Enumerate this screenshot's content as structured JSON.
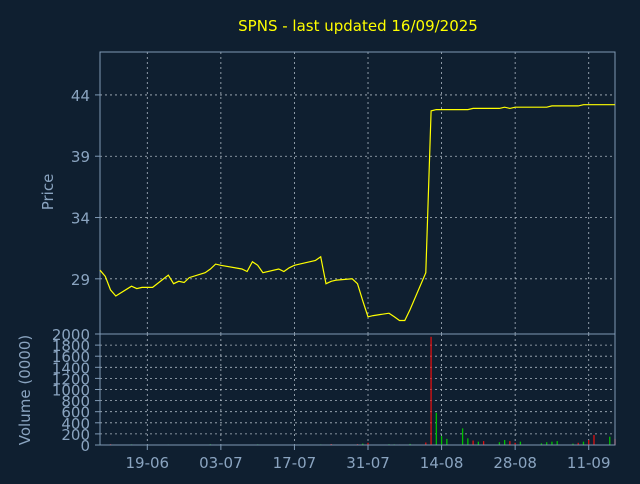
{
  "colors": {
    "background": "#0f1f30",
    "axis": "#7f9ab5",
    "grid": "#c8d2dc",
    "title": "#ffff00",
    "price_line": "#ffff00",
    "volume_up": "#00c000",
    "volume_down": "#e01010",
    "tick_text": "#8aa4c0"
  },
  "chart_data": [
    {
      "type": "line",
      "title": "SPNS - last updated 16/09/2025",
      "ylabel": "Price",
      "xlabel": "",
      "ylim": [
        24.5,
        47.5
      ],
      "yticks": [
        29,
        34,
        39,
        44
      ],
      "grid": true,
      "x_range": [
        "2025-06-10",
        "2025-09-16"
      ],
      "xticks": [
        {
          "date": "2025-06-19",
          "label": "19-06"
        },
        {
          "date": "2025-07-03",
          "label": "03-07"
        },
        {
          "date": "2025-07-17",
          "label": "17-07"
        },
        {
          "date": "2025-07-31",
          "label": "31-07"
        },
        {
          "date": "2025-08-14",
          "label": "14-08"
        },
        {
          "date": "2025-08-28",
          "label": "28-08"
        },
        {
          "date": "2025-09-11",
          "label": "11-09"
        }
      ],
      "series": [
        {
          "x": [
            "2025-06-10",
            "2025-06-11",
            "2025-06-12",
            "2025-06-13",
            "2025-06-16",
            "2025-06-17",
            "2025-06-18",
            "2025-06-20",
            "2025-06-23",
            "2025-06-24",
            "2025-06-25",
            "2025-06-26",
            "2025-06-27",
            "2025-06-30",
            "2025-07-01",
            "2025-07-02",
            "2025-07-03",
            "2025-07-07",
            "2025-07-08",
            "2025-07-09",
            "2025-07-10",
            "2025-07-11",
            "2025-07-14",
            "2025-07-15",
            "2025-07-16",
            "2025-07-17",
            "2025-07-18",
            "2025-07-21",
            "2025-07-22",
            "2025-07-23",
            "2025-07-24",
            "2025-07-25",
            "2025-07-28",
            "2025-07-29",
            "2025-07-30",
            "2025-07-31",
            "2025-08-01",
            "2025-08-04",
            "2025-08-05",
            "2025-08-06",
            "2025-08-07",
            "2025-08-08",
            "2025-08-11",
            "2025-08-12",
            "2025-08-13",
            "2025-08-14",
            "2025-08-15",
            "2025-08-18",
            "2025-08-19",
            "2025-08-20",
            "2025-08-21",
            "2025-08-22",
            "2025-08-25",
            "2025-08-26",
            "2025-08-27",
            "2025-08-28",
            "2025-08-29",
            "2025-09-02",
            "2025-09-03",
            "2025-09-04",
            "2025-09-05",
            "2025-09-08",
            "2025-09-09",
            "2025-09-10",
            "2025-09-11",
            "2025-09-12",
            "2025-09-15",
            "2025-09-16"
          ],
          "y": [
            29.7,
            29.2,
            28.1,
            27.6,
            28.4,
            28.2,
            28.3,
            28.3,
            29.3,
            28.6,
            28.8,
            28.7,
            29.1,
            29.5,
            29.8,
            30.2,
            30.1,
            29.8,
            29.6,
            30.4,
            30.1,
            29.5,
            29.8,
            29.6,
            29.9,
            30.1,
            30.2,
            30.5,
            30.8,
            28.6,
            28.8,
            28.9,
            29.0,
            28.6,
            27.2,
            25.9,
            26.0,
            26.2,
            25.9,
            25.6,
            25.6,
            26.5,
            29.5,
            42.7,
            42.8,
            42.8,
            42.8,
            42.8,
            42.8,
            42.9,
            42.9,
            42.9,
            42.9,
            43.0,
            42.9,
            43.0,
            43.0,
            43.0,
            43.0,
            43.1,
            43.1,
            43.1,
            43.1,
            43.2,
            43.2,
            43.2,
            43.2,
            43.2
          ]
        }
      ]
    },
    {
      "type": "bar",
      "ylabel": "Volume (0000)",
      "ylim": [
        0,
        2000
      ],
      "yticks": [
        0,
        200,
        400,
        600,
        800,
        1000,
        1200,
        1400,
        1600,
        1800,
        2000
      ],
      "grid": true,
      "series": [
        {
          "name": "volume",
          "x": [
            "2025-06-10",
            "2025-06-12",
            "2025-06-16",
            "2025-06-20",
            "2025-06-23",
            "2025-06-27",
            "2025-07-01",
            "2025-07-08",
            "2025-07-10",
            "2025-07-14",
            "2025-07-18",
            "2025-07-22",
            "2025-07-24",
            "2025-07-29",
            "2025-07-30",
            "2025-07-31",
            "2025-08-04",
            "2025-08-05",
            "2025-08-06",
            "2025-08-08",
            "2025-08-11",
            "2025-08-12",
            "2025-08-13",
            "2025-08-14",
            "2025-08-15",
            "2025-08-18",
            "2025-08-19",
            "2025-08-20",
            "2025-08-21",
            "2025-08-22",
            "2025-08-25",
            "2025-08-26",
            "2025-08-27",
            "2025-08-28",
            "2025-08-29",
            "2025-09-02",
            "2025-09-03",
            "2025-09-04",
            "2025-09-05",
            "2025-09-08",
            "2025-09-09",
            "2025-09-10",
            "2025-09-11",
            "2025-09-12",
            "2025-09-15",
            "2025-09-16"
          ],
          "values": [
            10,
            15,
            12,
            8,
            10,
            6,
            14,
            9,
            12,
            7,
            10,
            11,
            18,
            16,
            25,
            40,
            14,
            12,
            10,
            20,
            45,
            1950,
            580,
            160,
            110,
            300,
            120,
            80,
            60,
            70,
            50,
            90,
            70,
            40,
            60,
            30,
            50,
            60,
            70,
            25,
            40,
            60,
            90,
            180,
            150,
            110
          ],
          "direction": [
            "up",
            "down",
            "up",
            "down",
            "up",
            "up",
            "up",
            "down",
            "up",
            "up",
            "up",
            "up",
            "down",
            "down",
            "up",
            "down",
            "up",
            "up",
            "down",
            "up",
            "down",
            "down",
            "up",
            "up",
            "up",
            "up",
            "up",
            "down",
            "up",
            "down",
            "up",
            "up",
            "down",
            "down",
            "up",
            "up",
            "up",
            "up",
            "up",
            "up",
            "down",
            "up",
            "down",
            "down",
            "up",
            "down"
          ]
        }
      ]
    }
  ]
}
